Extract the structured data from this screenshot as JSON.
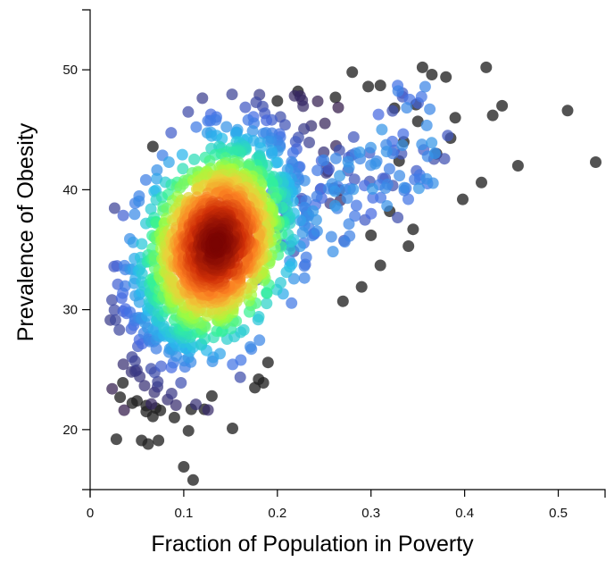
{
  "chart_data": {
    "type": "scatter",
    "xlabel": "Fraction of Population in Poverty",
    "ylabel": "Prevalence of Obesity",
    "xlim": [
      0,
      0.55
    ],
    "ylim": [
      15,
      55
    ],
    "x_ticks": [
      "0",
      "0.1",
      "0.2",
      "0.3",
      "0.4",
      "0.5"
    ],
    "y_ticks": [
      "20",
      "30",
      "40",
      "50"
    ],
    "color_encoding": "point density (turbo colormap: dark red = densest, through orange/yellow/green/cyan/blue/purple, near-black = sparsest)",
    "density_center": {
      "x": 0.135,
      "y": 35.5
    },
    "colors": {
      "densest": "#7a0403",
      "dense": "#f05b12",
      "mid": "#a2fc3c",
      "sparse": "#4777ef",
      "sparsest": "#30123b",
      "outlier": "#222222"
    },
    "approx_point_count": 1500,
    "outlier_points": [
      [
        0.54,
        42.3
      ],
      [
        0.51,
        46.6
      ],
      [
        0.457,
        42.0
      ],
      [
        0.44,
        47.0
      ],
      [
        0.43,
        46.2
      ],
      [
        0.423,
        50.2
      ],
      [
        0.418,
        40.6
      ],
      [
        0.398,
        39.2
      ],
      [
        0.39,
        46.0
      ],
      [
        0.385,
        44.3
      ],
      [
        0.38,
        49.4
      ],
      [
        0.37,
        43.0
      ],
      [
        0.365,
        49.6
      ],
      [
        0.355,
        50.2
      ],
      [
        0.35,
        45.7
      ],
      [
        0.348,
        47.1
      ],
      [
        0.345,
        36.7
      ],
      [
        0.34,
        35.3
      ],
      [
        0.335,
        44.0
      ],
      [
        0.33,
        42.4
      ],
      [
        0.325,
        46.8
      ],
      [
        0.31,
        48.7
      ],
      [
        0.297,
        48.6
      ],
      [
        0.28,
        49.8
      ],
      [
        0.262,
        47.7
      ],
      [
        0.2,
        47.4
      ],
      [
        0.222,
        48.2
      ],
      [
        0.31,
        33.7
      ],
      [
        0.27,
        30.7
      ],
      [
        0.29,
        31.9
      ],
      [
        0.3,
        36.2
      ],
      [
        0.32,
        38.2
      ],
      [
        0.152,
        20.1
      ],
      [
        0.1,
        16.9
      ],
      [
        0.11,
        15.8
      ],
      [
        0.028,
        19.2
      ],
      [
        0.055,
        19.1
      ],
      [
        0.062,
        18.8
      ],
      [
        0.073,
        19.1
      ],
      [
        0.06,
        21.5
      ],
      [
        0.067,
        21.1
      ],
      [
        0.07,
        21.8
      ],
      [
        0.075,
        21.6
      ],
      [
        0.045,
        22.2
      ],
      [
        0.09,
        21.0
      ],
      [
        0.105,
        19.9
      ],
      [
        0.108,
        21.7
      ],
      [
        0.122,
        21.7
      ],
      [
        0.13,
        22.8
      ],
      [
        0.035,
        23.9
      ],
      [
        0.032,
        22.7
      ],
      [
        0.19,
        25.6
      ],
      [
        0.176,
        23.5
      ],
      [
        0.18,
        24.2
      ],
      [
        0.067,
        43.6
      ],
      [
        0.185,
        23.9
      ],
      [
        0.06,
        22.0
      ],
      [
        0.05,
        22.4
      ]
    ]
  }
}
